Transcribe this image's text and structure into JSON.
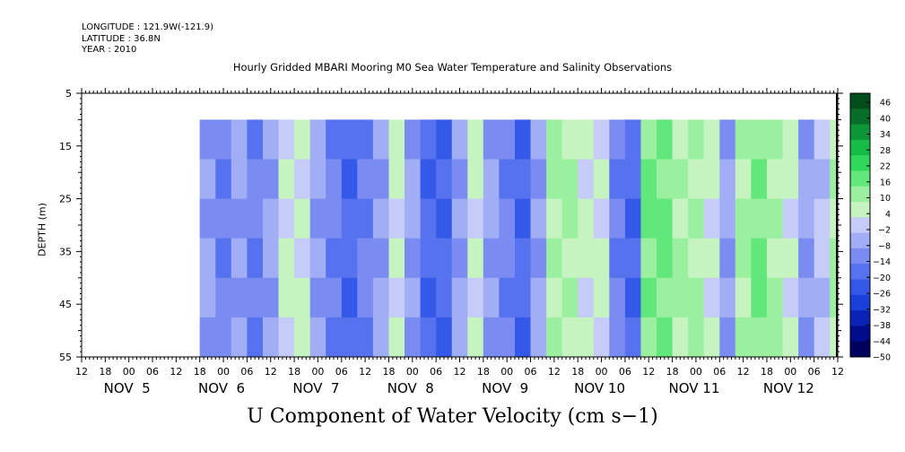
{
  "header": {
    "longitude": "LONGITUDE : 121.9W(-121.9)",
    "latitude": "LATITUDE : 36.8N",
    "year": "YEAR : 2010"
  },
  "chart_data": {
    "type": "heatmap",
    "title": "Hourly Gridded MBARI Mooring M0 Sea Water Temperature and Salinity Observations",
    "xlabel": "U Component of Water Velocity (cm s−1)",
    "ylabel": "DEPTH (m)",
    "y_axis": {
      "range": [
        55,
        5
      ],
      "ticks": [
        5,
        15,
        25,
        35,
        45,
        55
      ],
      "direction": "depth increases downward"
    },
    "x_axis": {
      "range_hours_from_nov5_00": [
        -12,
        180
      ],
      "hour_tick_labels": [
        "12",
        "18",
        "00",
        "06",
        "12",
        "18",
        "00",
        "06",
        "12",
        "18",
        "00",
        "06",
        "12",
        "18",
        "00",
        "06",
        "12",
        "18",
        "00",
        "06",
        "12",
        "18",
        "00",
        "06",
        "12",
        "18",
        "00",
        "06",
        "12",
        "18",
        "00",
        "06",
        "12"
      ],
      "day_labels": [
        "NOV  5",
        "NOV  6",
        "NOV  7",
        "NOV  8",
        "NOV  9",
        "NOV 10",
        "NOV 11",
        "NOV 12"
      ]
    },
    "data_extent": {
      "depth_range_m": [
        10,
        55
      ],
      "time_start": "NOV 5 ~18",
      "time_end": "NOV 12 ~12"
    },
    "colorbar": {
      "levels": [
        -50,
        -44,
        -38,
        -32,
        -26,
        -20,
        -14,
        -8,
        -2,
        4,
        10,
        16,
        22,
        28,
        34,
        40,
        46
      ],
      "label_values": [
        "46",
        "40",
        "34",
        "28",
        "22",
        "16",
        "10",
        "4",
        "−2",
        "−8",
        "−14",
        "−20",
        "−26",
        "−32",
        "−38",
        "−44",
        "−50"
      ],
      "colors": [
        "#00005e",
        "#000c8c",
        "#0a22b6",
        "#1b3fd9",
        "#3458e8",
        "#5672ef",
        "#7a8cf2",
        "#a1aef5",
        "#c5ccf7",
        "#c6f4c0",
        "#9bf0a0",
        "#62e77a",
        "#2fd85a",
        "#17bc46",
        "#0c9637",
        "#066e28",
        "#034d1c"
      ]
    },
    "series_profile_note": "dominant U velocity (cm/s) per time column, negative = blue, positive = green",
    "bands": [
      {
        "hour": 18,
        "u": -8
      },
      {
        "hour": 22,
        "u": -14
      },
      {
        "hour": 26,
        "u": -8
      },
      {
        "hour": 30,
        "u": -14
      },
      {
        "hour": 34,
        "u": -8
      },
      {
        "hour": 38,
        "u": 4
      },
      {
        "hour": 42,
        "u": 4
      },
      {
        "hour": 46,
        "u": -8
      },
      {
        "hour": 50,
        "u": -14
      },
      {
        "hour": 54,
        "u": -20
      },
      {
        "hour": 58,
        "u": -14
      },
      {
        "hour": 62,
        "u": -8
      },
      {
        "hour": 66,
        "u": 4
      },
      {
        "hour": 70,
        "u": -8
      },
      {
        "hour": 74,
        "u": -20
      },
      {
        "hour": 78,
        "u": -20
      },
      {
        "hour": 82,
        "u": -8
      },
      {
        "hour": 86,
        "u": 4
      },
      {
        "hour": 90,
        "u": -8
      },
      {
        "hour": 94,
        "u": -14
      },
      {
        "hour": 98,
        "u": -20
      },
      {
        "hour": 102,
        "u": -8
      },
      {
        "hour": 106,
        "u": 10
      },
      {
        "hour": 110,
        "u": 10
      },
      {
        "hour": 114,
        "u": 4
      },
      {
        "hour": 118,
        "u": 4
      },
      {
        "hour": 122,
        "u": -14
      },
      {
        "hour": 126,
        "u": -20
      },
      {
        "hour": 130,
        "u": 16
      },
      {
        "hour": 134,
        "u": 16
      },
      {
        "hour": 138,
        "u": 10
      },
      {
        "hour": 142,
        "u": 10
      },
      {
        "hour": 146,
        "u": 4
      },
      {
        "hour": 150,
        "u": -8
      },
      {
        "hour": 154,
        "u": 10
      },
      {
        "hour": 158,
        "u": 16
      },
      {
        "hour": 162,
        "u": 10
      },
      {
        "hour": 166,
        "u": 4
      },
      {
        "hour": 170,
        "u": -8
      },
      {
        "hour": 174,
        "u": -2
      },
      {
        "hour": 178,
        "u": 10
      }
    ]
  }
}
